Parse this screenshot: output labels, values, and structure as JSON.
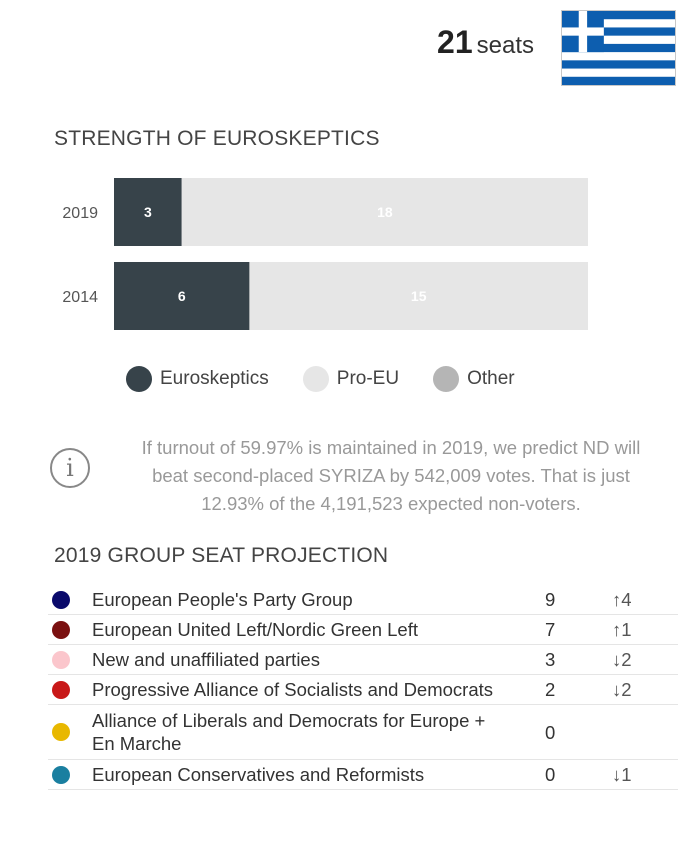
{
  "header": {
    "seats_number": "21",
    "seats_unit": "seats",
    "country_flag": "greece-flag-icon"
  },
  "colors": {
    "euroskeptics": "#37434a",
    "pro_eu": "#e6e6e6",
    "other": "#b5b5b5"
  },
  "strength": {
    "title": "STRENGTH OF EUROSKEPTICS",
    "chart_data": {
      "type": "bar",
      "orientation": "horizontal",
      "stacked": true,
      "title": "STRENGTH OF EUROSKEPTICS",
      "categories": [
        "2019",
        "2014"
      ],
      "series": [
        {
          "name": "Euroskeptics",
          "values": [
            3,
            6
          ],
          "color": "#37434a"
        },
        {
          "name": "Pro-EU",
          "values": [
            18,
            15
          ],
          "color": "#e6e6e6"
        },
        {
          "name": "Other",
          "values": [
            0,
            0
          ],
          "color": "#b5b5b5"
        }
      ],
      "xlim": [
        0,
        21
      ],
      "grid": false,
      "legend_position": "bottom"
    },
    "legend": [
      {
        "label": "Euroskeptics",
        "color": "#37434a"
      },
      {
        "label": "Pro-EU",
        "color": "#e6e6e6"
      },
      {
        "label": "Other",
        "color": "#b5b5b5"
      }
    ]
  },
  "info": {
    "icon": "info-icon",
    "line1": "If turnout of 59.97% is maintained in 2019, we predict ND will",
    "line2": "beat second-placed SYRIZA by 542,009 votes. That is just",
    "line3": "12.93% of the 4,191,523 expected non-voters."
  },
  "projection": {
    "title": "2019 GROUP SEAT PROJECTION",
    "rows": [
      {
        "lines": [
          "European People's Party Group"
        ],
        "seats": "9",
        "change": "↑4",
        "color": "#0a0a6b"
      },
      {
        "lines": [
          "European United Left/Nordic Green Left"
        ],
        "seats": "7",
        "change": "↑1",
        "color": "#7a1010"
      },
      {
        "lines": [
          "New and unaffiliated parties"
        ],
        "seats": "3",
        "change": "↓2",
        "color": "#fbc6cc"
      },
      {
        "lines": [
          "Progressive Alliance of Socialists and Democrats"
        ],
        "seats": "2",
        "change": "↓2",
        "color": "#c81818"
      },
      {
        "lines": [
          "Alliance of Liberals and Democrats for Europe +",
          "En Marche"
        ],
        "seats": "0",
        "change": "",
        "color": "#e8b800"
      },
      {
        "lines": [
          "European Conservatives and Reformists"
        ],
        "seats": "0",
        "change": "↓1",
        "color": "#1a7fa0"
      }
    ]
  }
}
